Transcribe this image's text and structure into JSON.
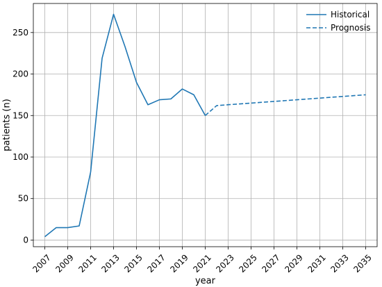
{
  "chart_data": {
    "type": "line",
    "xlabel": "year",
    "ylabel": "patients (n)",
    "xlim": [
      2006,
      2036
    ],
    "ylim": [
      -8,
      285
    ],
    "xticks": [
      2007,
      2009,
      2011,
      2013,
      2015,
      2017,
      2019,
      2021,
      2023,
      2025,
      2027,
      2029,
      2031,
      2033,
      2035
    ],
    "yticks": [
      0,
      50,
      100,
      150,
      200,
      250
    ],
    "grid": true,
    "legend_position": "top-right",
    "series": [
      {
        "name": "Historical",
        "style": "solid",
        "color": "#1f77b4",
        "x": [
          2007,
          2008,
          2009,
          2010,
          2011,
          2012,
          2013,
          2014,
          2015,
          2016,
          2017,
          2018,
          2019,
          2020,
          2021
        ],
        "y": [
          4,
          15,
          15,
          17,
          82,
          219,
          272,
          233,
          190,
          163,
          169,
          170,
          182,
          175,
          150
        ]
      },
      {
        "name": "Prognosis",
        "style": "dashed",
        "color": "#1f77b4",
        "x": [
          2021,
          2022,
          2023,
          2024,
          2025,
          2026,
          2027,
          2028,
          2029,
          2030,
          2031,
          2032,
          2033,
          2034,
          2035
        ],
        "y": [
          150,
          162,
          163,
          164,
          165,
          166,
          167,
          168,
          169,
          170,
          171,
          172,
          173,
          174,
          175
        ]
      }
    ]
  }
}
